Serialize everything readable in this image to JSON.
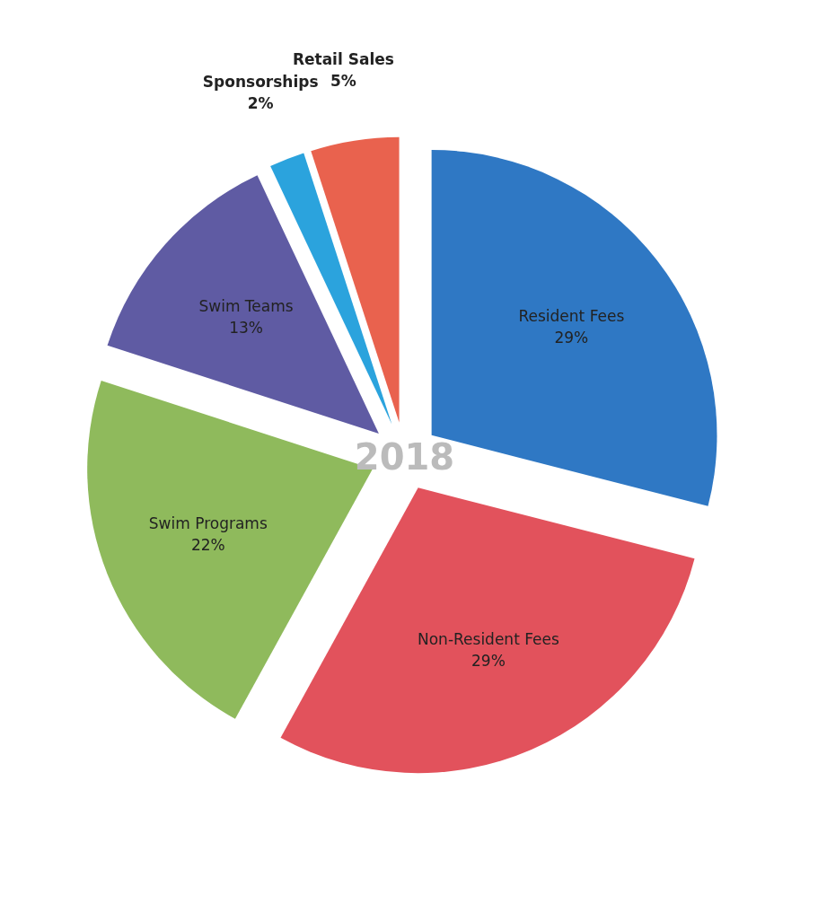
{
  "chart_data": {
    "type": "pie",
    "title": "2018",
    "categories": [
      "Resident Fees",
      "Non-Resident Fees",
      "Swim Programs",
      "Swim Teams",
      "Sponsorships",
      "Retail Sales"
    ],
    "values": [
      29,
      29,
      22,
      13,
      2,
      5
    ],
    "value_labels": [
      "29%",
      "29%",
      "22%",
      "13%",
      "2%",
      "5%"
    ],
    "colors": [
      "#2f78c4",
      "#e2525c",
      "#8fba5c",
      "#5f5ba3",
      "#2ba3dd",
      "#e9624e"
    ]
  }
}
